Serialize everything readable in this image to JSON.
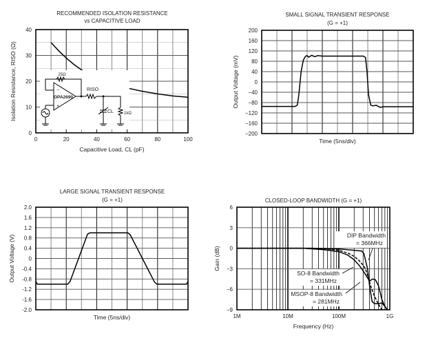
{
  "chart_data": [
    {
      "type": "line",
      "title": "RECOMMENDED ISOLATION RESISTANCE",
      "subtitle": "vs CAPACITIVE LOAD",
      "xlabel": "Capacitive Load, CL (pF)",
      "ylabel": "Isolation Resistance, RISO (Ω)",
      "xlim": [
        0,
        100
      ],
      "ylim": [
        0,
        40
      ],
      "xticks": [
        0,
        20,
        40,
        60,
        80,
        100
      ],
      "yticks": [
        0,
        10,
        20,
        30,
        40
      ],
      "grid": true,
      "series": [
        {
          "name": "RISO",
          "x": [
            10,
            15,
            20,
            25,
            30,
            40,
            50,
            60,
            70,
            80,
            90,
            100
          ],
          "y": [
            35,
            31.8,
            29,
            26.5,
            24.4,
            21.2,
            19,
            17.4,
            16.1,
            15.1,
            14.3,
            13.8
          ]
        }
      ],
      "inset_labels": {
        "feedback": "25Ω",
        "opamp": "OPA2690",
        "riso": "RISO",
        "cl": "CL",
        "load": "1kΩ"
      }
    },
    {
      "type": "line",
      "title": "SMALL SIGNAL TRANSIENT RESPONSE",
      "subtitle": "(G = +1)",
      "xlabel": "Time (5ns/div)",
      "ylabel": "Output Voltage (mV)",
      "xlim": [
        0,
        10
      ],
      "ylim": [
        -200,
        200
      ],
      "yticks": [
        200,
        160,
        120,
        80,
        40,
        0,
        -40,
        -80,
        -120,
        -160,
        -200
      ],
      "grid": true,
      "series": [
        {
          "name": "Vout",
          "x": [
            0,
            2.2,
            2.35,
            2.45,
            2.6,
            2.75,
            2.9,
            3.0,
            3.1,
            3.3,
            3.5,
            3.7,
            4.0,
            4.5,
            6.7,
            6.85,
            6.95,
            7.05,
            7.2,
            7.35,
            7.55,
            7.8,
            8.1,
            10
          ],
          "y": [
            -95,
            -95,
            -90,
            -50,
            40,
            85,
            100,
            102,
            96,
            103,
            98,
            102,
            100,
            100,
            100,
            95,
            40,
            -50,
            -90,
            -93,
            -90,
            -98,
            -96,
            -96
          ]
        }
      ]
    },
    {
      "type": "line",
      "title": "LARGE SIGNAL TRANSIENT RESPONSE",
      "subtitle": "(G = +1)",
      "xlabel": "Time (5ns/div)",
      "ylabel": "Output Voltage (V)",
      "xlim": [
        0,
        10
      ],
      "ylim": [
        -2,
        2
      ],
      "yticks": [
        2.0,
        1.6,
        1.2,
        0.8,
        0.4,
        0,
        -0.4,
        -0.8,
        -1.2,
        -1.6,
        -2.0
      ],
      "ytick_labels": [
        "2.0",
        "1.6",
        "1.2",
        "0.8",
        "0.4",
        "0",
        "-0.4",
        "-0.8",
        "-1.2",
        "-1.6",
        "-2.0"
      ],
      "grid": true,
      "series": [
        {
          "name": "Vout",
          "x": [
            0,
            0.1,
            2.1,
            2.25,
            3.4,
            3.55,
            6.05,
            6.2,
            7.8,
            7.95,
            9.9,
            10
          ],
          "y": [
            -0.9,
            -1.0,
            -1.0,
            -0.9,
            0.95,
            1.0,
            1.0,
            0.93,
            -0.92,
            -1.0,
            -1.0,
            -0.9
          ]
        }
      ]
    },
    {
      "type": "line",
      "title": "CLOSED-LOOP BANDWIDTH (G = +1)",
      "xlabel": "Frequency (Hz)",
      "ylabel": "Gain (dB)",
      "xscale": "log",
      "xlim": [
        1000000,
        1000000000
      ],
      "ylim": [
        -9,
        6
      ],
      "xticks": [
        1000000,
        10000000,
        100000000,
        1000000000
      ],
      "xtick_labels": [
        "1M",
        "10M",
        "100M",
        "1G"
      ],
      "yticks": [
        6,
        3,
        0,
        -3,
        -6,
        -9
      ],
      "ytick_labels": [
        "6",
        "3",
        "0",
        "−3",
        "−6",
        "−9"
      ],
      "grid": true,
      "series": [
        {
          "name": "DIP",
          "dash": false,
          "x": [
            1000000.0,
            30000000.0,
            100000000.0,
            200000000.0,
            280000000.0,
            310000000.0,
            340000000.0,
            366000000.0,
            400000000.0,
            450000000.0,
            500000000.0,
            600000000.0,
            700000000.0,
            800000000.0,
            900000000.0
          ],
          "y": [
            0,
            0,
            -0.1,
            -0.3,
            -0.4,
            -0.8,
            -2,
            -3,
            -5.5,
            -7.8,
            -8.1,
            -8.1,
            -8,
            -8.5,
            -9
          ]
        },
        {
          "name": "SO-8",
          "dash": true,
          "x": [
            1000000.0,
            30000000.0,
            60000000.0,
            100000000.0,
            150000000.0,
            200000000.0,
            250000000.0,
            300000000.0,
            331000000.0,
            370000000.0,
            420000000.0,
            500000000.0,
            600000000.0,
            700000000.0
          ],
          "y": [
            0,
            0,
            -0.1,
            -0.3,
            -0.7,
            -1.2,
            -1.8,
            -2.5,
            -3,
            -4,
            -5.5,
            -7,
            -8.2,
            -9
          ]
        },
        {
          "name": "MSOP-8",
          "dash": false,
          "x": [
            1000000.0,
            20000000.0,
            50000000.0,
            100000000.0,
            150000000.0,
            200000000.0,
            250000000.0,
            281000000.0,
            330000000.0,
            400000000.0,
            460000000.0,
            520000000.0,
            600000000.0,
            700000000.0,
            800000000.0,
            900000000.0
          ],
          "y": [
            0,
            0,
            -0.2,
            -0.5,
            -1,
            -1.7,
            -2.5,
            -3,
            -3.8,
            -4.8,
            -4.5,
            -4.6,
            -5.5,
            -7.5,
            -8.5,
            -9
          ]
        }
      ],
      "annotations": [
        {
          "text": "DIP Bandwidth",
          "line2": "= 366MHz"
        },
        {
          "text": "SO-8 Bandwidth",
          "line2": "= 331MHz"
        },
        {
          "text": "MSOP-8 Bandwidth",
          "line2": "= 281MHz"
        }
      ]
    }
  ]
}
